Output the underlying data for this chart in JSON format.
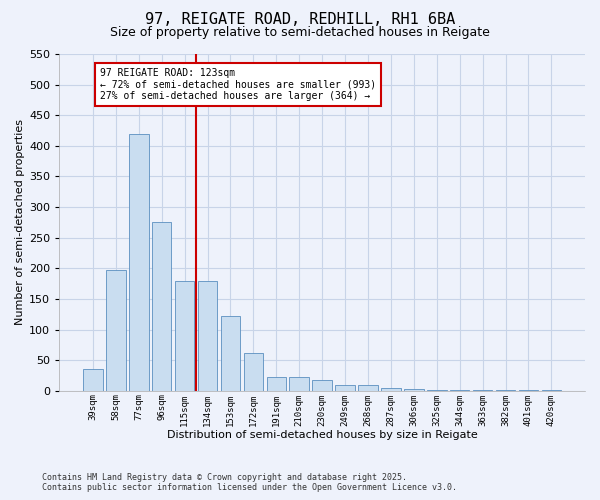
{
  "title_line1": "97, REIGATE ROAD, REDHILL, RH1 6BA",
  "title_line2": "Size of property relative to semi-detached houses in Reigate",
  "xlabel": "Distribution of semi-detached houses by size in Reigate",
  "ylabel": "Number of semi-detached properties",
  "categories": [
    "39sqm",
    "58sqm",
    "77sqm",
    "96sqm",
    "115sqm",
    "134sqm",
    "153sqm",
    "172sqm",
    "191sqm",
    "210sqm",
    "230sqm",
    "249sqm",
    "268sqm",
    "287sqm",
    "306sqm",
    "325sqm",
    "344sqm",
    "363sqm",
    "382sqm",
    "401sqm",
    "420sqm"
  ],
  "values": [
    35,
    197,
    420,
    275,
    180,
    180,
    122,
    62,
    22,
    22,
    17,
    10,
    10,
    5,
    3,
    2,
    1,
    1,
    1,
    1,
    1
  ],
  "bar_color": "#c9ddf0",
  "bar_edge_color": "#5b8fc0",
  "property_size": 123,
  "property_bin_index": 4,
  "property_label": "97 REIGATE ROAD: 123sqm",
  "pct_smaller": 72,
  "pct_smaller_count": 993,
  "pct_larger": 27,
  "pct_larger_count": 364,
  "annotation_box_color": "#ffffff",
  "annotation_box_edge": "#cc0000",
  "vline_color": "#cc0000",
  "ylim": [
    0,
    550
  ],
  "yticks": [
    0,
    50,
    100,
    150,
    200,
    250,
    300,
    350,
    400,
    450,
    500,
    550
  ],
  "grid_color": "#c8d4e8",
  "background_color": "#eef2fb",
  "footer_line1": "Contains HM Land Registry data © Crown copyright and database right 2025.",
  "footer_line2": "Contains public sector information licensed under the Open Government Licence v3.0."
}
